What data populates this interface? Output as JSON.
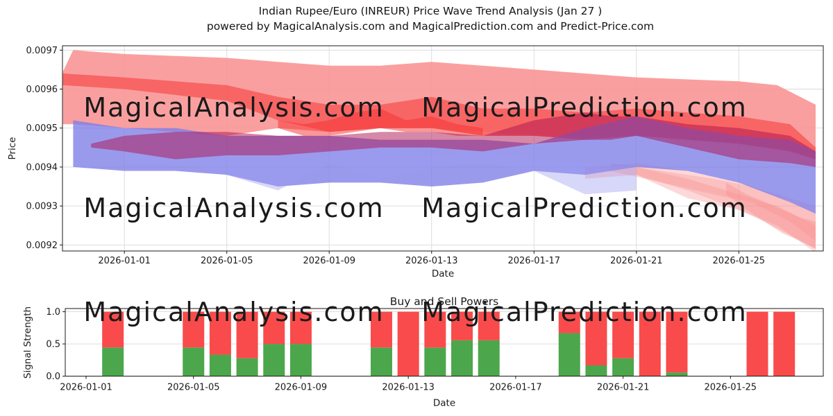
{
  "page": {
    "title_line1": "Indian Rupee/Euro (INREUR) Price Wave Trend Analysis (Jan 27 )",
    "title_line2": "powered by MagicalAnalysis.com and MagicalPrediction.com and Predict-Price.com"
  },
  "watermarks": {
    "analysis": "MagicalAnalysis.com",
    "prediction": "MagicalPrediction.com"
  },
  "chart_data": [
    {
      "type": "area",
      "name": "price-wave-trend",
      "xlabel": "Date",
      "ylabel": "Price",
      "x_start_date": "2025-12-30",
      "x_end_date": "2026-01-28",
      "x_tick_labels": [
        "2026-01-01",
        "2026-01-05",
        "2026-01-09",
        "2026-01-13",
        "2026-01-17",
        "2026-01-21",
        "2026-01-25"
      ],
      "x_tick_days": [
        2,
        6,
        10,
        14,
        18,
        22,
        26
      ],
      "y_tick_labels": [
        "0.0092",
        "0.0093",
        "0.0094",
        "0.0095",
        "0.0096",
        "0.0097"
      ],
      "y_ticks": [
        0.0092,
        0.0093,
        0.0094,
        0.0095,
        0.0096,
        0.0097
      ],
      "ylim": [
        0.009185,
        0.009711
      ],
      "grid": true,
      "bands": [
        {
          "name": "outer-pink-band",
          "color": "#f98e8e",
          "opacity": 0.85,
          "days": [
            -0.4,
            0,
            2,
            4,
            6,
            8,
            10,
            12,
            14,
            16,
            18,
            20,
            22,
            24,
            26,
            27.5,
            29
          ],
          "top": [
            0.009645,
            0.0097,
            0.00969,
            0.009685,
            0.00968,
            0.00967,
            0.00966,
            0.00966,
            0.00967,
            0.00966,
            0.00965,
            0.00964,
            0.00963,
            0.009625,
            0.00962,
            0.00961,
            0.00956
          ],
          "bottom": [
            0.00951,
            0.00951,
            0.0095,
            0.00949,
            0.00948,
            0.0095,
            0.00949,
            0.0095,
            0.0095,
            0.00949,
            0.00948,
            0.00948,
            0.00948,
            0.00947,
            0.00946,
            0.00945,
            0.00943
          ]
        },
        {
          "name": "red-forecast-band",
          "color": "#f75e5e",
          "opacity": 0.9,
          "days": [
            -0.4,
            2,
            6,
            8,
            10,
            12,
            14,
            16,
            18,
            20,
            22,
            24,
            26,
            28,
            29
          ],
          "top": [
            0.00964,
            0.00963,
            0.00961,
            0.00958,
            0.00956,
            0.00956,
            0.00958,
            0.00955,
            0.00955,
            0.00954,
            0.00955,
            0.00954,
            0.00953,
            0.00951,
            0.00945
          ],
          "bottom": [
            0.00961,
            0.0096,
            0.00957,
            0.00952,
            0.00949,
            0.0095,
            0.0095,
            0.00948,
            0.00948,
            0.00947,
            0.00948,
            0.00947,
            0.00946,
            0.00944,
            0.00942
          ]
        },
        {
          "name": "bright-red-hotspot",
          "color": "#f63030",
          "opacity": 0.5,
          "days": [
            8,
            9,
            10,
            11,
            12,
            13,
            14,
            15,
            16
          ],
          "top": [
            0.00952,
            0.00951,
            0.00952,
            0.00954,
            0.00955,
            0.00952,
            0.00953,
            0.00951,
            0.0095
          ],
          "bottom": [
            0.0095,
            0.00948,
            0.00948,
            0.00949,
            0.0095,
            0.00949,
            0.00949,
            0.00948,
            0.00948
          ]
        },
        {
          "name": "pink-fan-wide",
          "color": "#f89090",
          "opacity": 0.35,
          "days": [
            20,
            22,
            24,
            26,
            27,
            29
          ],
          "top": [
            0.0094,
            0.00941,
            0.00939,
            0.00936,
            0.00934,
            0.0093
          ],
          "bottom": [
            0.00937,
            0.00938,
            0.00932,
            0.00929,
            0.00926,
            0.00919
          ]
        },
        {
          "name": "pink-fan-streak-1",
          "color": "#f88888",
          "opacity": 0.3,
          "days": [
            21,
            23,
            25,
            26.5,
            28,
            29
          ],
          "top": [
            0.00941,
            0.00939,
            0.00937,
            0.00935,
            0.00931,
            0.00928
          ],
          "bottom": [
            0.00939,
            0.00936,
            0.00933,
            0.00931,
            0.00926,
            0.00921
          ]
        },
        {
          "name": "pink-fan-streak-2",
          "color": "#f88888",
          "opacity": 0.3,
          "days": [
            22,
            24,
            26,
            27.5,
            29
          ],
          "top": [
            0.0094,
            0.00937,
            0.00933,
            0.0093,
            0.00925
          ],
          "bottom": [
            0.00938,
            0.00934,
            0.00929,
            0.00925,
            0.00918
          ]
        },
        {
          "name": "pink-fan-zigzag",
          "color": "#f88888",
          "opacity": 0.35,
          "days": [
            25.5,
            26.3,
            27,
            27.7,
            28.4,
            29
          ],
          "top": [
            0.00936,
            0.00933,
            0.00931,
            0.00929,
            0.00927,
            0.00926
          ],
          "bottom": [
            0.00933,
            0.00929,
            0.00926,
            0.00923,
            0.00921,
            0.00919
          ]
        },
        {
          "name": "blue-band",
          "color": "#7d7de8",
          "opacity": 0.78,
          "days": [
            0,
            2,
            4,
            6,
            8,
            10,
            12,
            14,
            16,
            18,
            20,
            22,
            24,
            26,
            28,
            29
          ],
          "top": [
            0.00952,
            0.0095,
            0.0095,
            0.00948,
            0.00948,
            0.00948,
            0.00947,
            0.00947,
            0.00947,
            0.00946,
            0.0095,
            0.00953,
            0.0095,
            0.00948,
            0.00947,
            0.00944
          ],
          "bottom": [
            0.0094,
            0.00939,
            0.00939,
            0.00938,
            0.00935,
            0.00936,
            0.00936,
            0.00935,
            0.00936,
            0.00939,
            0.00938,
            0.0094,
            0.00939,
            0.00936,
            0.00931,
            0.00928
          ]
        },
        {
          "name": "blue-streak",
          "color": "#9a9af0",
          "opacity": 0.4,
          "days": [
            2,
            5,
            8,
            10,
            12,
            14,
            16,
            18,
            20,
            22
          ],
          "top": [
            0.00944,
            0.00943,
            0.00946,
            0.00944,
            0.00946,
            0.00943,
            0.00944,
            0.00942,
            0.00941,
            0.0094
          ],
          "bottom": [
            0.00941,
            0.0094,
            0.00934,
            0.00941,
            0.00937,
            0.0094,
            0.00941,
            0.00939,
            0.00933,
            0.00934
          ]
        },
        {
          "name": "crimson-band",
          "color": "#ae1250",
          "opacity": 0.5,
          "days": [
            0.7,
            2,
            4,
            6,
            8,
            10,
            12,
            14,
            16,
            18,
            20,
            21,
            22,
            24,
            26,
            28,
            29
          ],
          "top": [
            0.00946,
            0.00948,
            0.00949,
            0.00949,
            0.00948,
            0.00948,
            0.00949,
            0.00949,
            0.00948,
            0.00952,
            0.00954,
            0.00953,
            0.00953,
            0.00951,
            0.0095,
            0.00948,
            0.00944
          ],
          "bottom": [
            0.00945,
            0.00944,
            0.00942,
            0.00943,
            0.00943,
            0.00944,
            0.00945,
            0.00945,
            0.00944,
            0.00946,
            0.00947,
            0.00947,
            0.00948,
            0.00945,
            0.00942,
            0.00941,
            0.0094
          ]
        }
      ]
    },
    {
      "type": "bar",
      "name": "buy-sell-powers",
      "title": "Buy and Sell Powers",
      "xlabel": "Date",
      "ylabel": "Signal Strength",
      "x_tick_labels": [
        "2026-01-01",
        "2026-01-05",
        "2026-01-09",
        "2026-01-13",
        "2026-01-17",
        "2026-01-21",
        "2026-01-25"
      ],
      "x_tick_days": [
        0,
        4,
        8,
        12,
        16,
        20,
        24
      ],
      "y_tick_labels": [
        "0.0",
        "0.5",
        "1.0"
      ],
      "y_ticks": [
        0,
        0.5,
        1.0
      ],
      "ylim": [
        0,
        1.05
      ],
      "stacked": true,
      "series_colors": {
        "buy": "#4ca64c",
        "sell": "#f94b4b"
      },
      "bars": [
        {
          "date": "2026-01-02",
          "buy": 0.444,
          "sell": 0.556
        },
        {
          "date": "2026-01-05",
          "buy": 0.444,
          "sell": 0.556
        },
        {
          "date": "2026-01-06",
          "buy": 0.333,
          "sell": 0.667
        },
        {
          "date": "2026-01-07",
          "buy": 0.278,
          "sell": 0.722
        },
        {
          "date": "2026-01-08",
          "buy": 0.5,
          "sell": 0.5
        },
        {
          "date": "2026-01-09",
          "buy": 0.5,
          "sell": 0.5
        },
        {
          "date": "2026-01-12",
          "buy": 0.444,
          "sell": 0.556
        },
        {
          "date": "2026-01-13",
          "buy": 0.0,
          "sell": 1.0
        },
        {
          "date": "2026-01-14",
          "buy": 0.444,
          "sell": 0.556
        },
        {
          "date": "2026-01-15",
          "buy": 0.556,
          "sell": 0.444
        },
        {
          "date": "2026-01-16",
          "buy": 0.556,
          "sell": 0.444
        },
        {
          "date": "2026-01-19",
          "buy": 0.667,
          "sell": 0.333
        },
        {
          "date": "2026-01-20",
          "buy": 0.167,
          "sell": 0.833
        },
        {
          "date": "2026-01-21",
          "buy": 0.278,
          "sell": 0.722
        },
        {
          "date": "2026-01-22",
          "buy": 0.0,
          "sell": 1.0
        },
        {
          "date": "2026-01-23",
          "buy": 0.056,
          "sell": 0.944
        },
        {
          "date": "2026-01-26",
          "buy": 0.0,
          "sell": 1.0
        },
        {
          "date": "2026-01-27",
          "buy": 0.0,
          "sell": 1.0
        }
      ]
    }
  ]
}
